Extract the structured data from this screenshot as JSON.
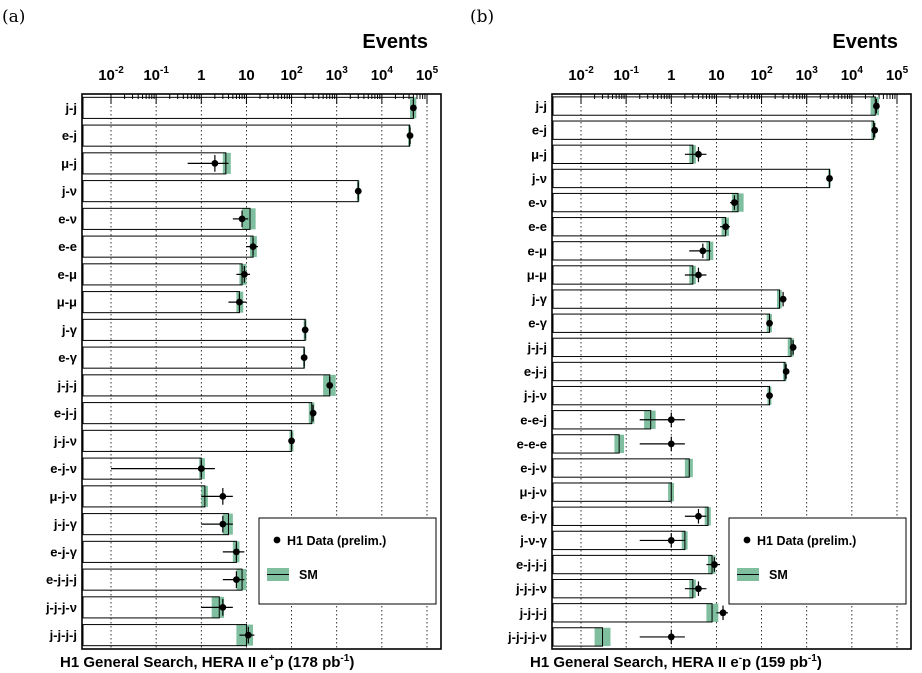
{
  "chart_data": [
    {
      "type": "bar",
      "panel_label": "(a)",
      "title": "Events",
      "x_scale": "log",
      "xlim": [
        0.01,
        100000
      ],
      "x_ticks": [
        {
          "base": "10",
          "exp": "-2"
        },
        {
          "base": "10",
          "exp": "-1"
        },
        {
          "base": "1",
          "exp": ""
        },
        {
          "base": "10",
          "exp": ""
        },
        {
          "base": "10",
          "exp": "2"
        },
        {
          "base": "10",
          "exp": "3"
        },
        {
          "base": "10",
          "exp": "4"
        },
        {
          "base": "10",
          "exp": "5"
        }
      ],
      "grid": "vertical dotted at decades",
      "categories": [
        "j-j",
        "e-j",
        "μ-j",
        "j-ν",
        "e-ν",
        "e-e",
        "e-μ",
        "μ-μ",
        "j-γ",
        "e-γ",
        "j-j-j",
        "e-j-j",
        "j-j-ν",
        "e-j-ν",
        "μ-j-ν",
        "j-j-γ",
        "e-j-γ",
        "e-j-j-j",
        "j-j-j-ν",
        "j-j-j-j"
      ],
      "series": [
        {
          "name": "H1 Data (prelim.)",
          "values": [
            50000,
            42000,
            2,
            3000,
            8,
            14,
            9,
            7,
            200,
            190,
            700,
            300,
            100,
            1,
            3,
            3,
            6,
            6,
            3,
            11
          ],
          "err_low": [
            5000,
            4000,
            1.5,
            200,
            3,
            4,
            3,
            3,
            15,
            15,
            30,
            20,
            10,
            0.99,
            2,
            2,
            3,
            3,
            2,
            4
          ],
          "err_high": [
            5000,
            4000,
            2,
            200,
            3,
            4,
            3,
            3,
            15,
            15,
            30,
            20,
            10,
            1,
            2,
            2,
            3,
            3,
            2,
            4
          ]
        },
        {
          "name": "SM",
          "values": [
            50000,
            41000,
            3.5,
            3000,
            12,
            14,
            8,
            7,
            200,
            190,
            700,
            280,
            100,
            1,
            1.2,
            4,
            6,
            8,
            2.5,
            10
          ],
          "band_low": [
            42000,
            38000,
            3,
            2800,
            8,
            12,
            7,
            6,
            185,
            180,
            500,
            240,
            90,
            0.9,
            1,
            3,
            5,
            6,
            1.7,
            6
          ],
          "band_high": [
            58000,
            44000,
            4.5,
            3200,
            16,
            17,
            10,
            8.5,
            215,
            200,
            950,
            320,
            110,
            1.2,
            1.4,
            5,
            7,
            10,
            3.2,
            14
          ]
        }
      ],
      "xlabel": "H1 General Search, HERA II e",
      "xlabel_sup": "+",
      "xlabel_rest": "p (178 pb",
      "xlabel_sup2": "-1",
      "xlabel_end": ")",
      "legend_position": "lower-right"
    },
    {
      "type": "bar",
      "panel_label": "(b)",
      "title": "Events",
      "x_scale": "log",
      "xlim": [
        0.01,
        100000
      ],
      "x_ticks": [
        {
          "base": "10",
          "exp": "-2"
        },
        {
          "base": "10",
          "exp": "-1"
        },
        {
          "base": "1",
          "exp": ""
        },
        {
          "base": "10",
          "exp": ""
        },
        {
          "base": "10",
          "exp": "2"
        },
        {
          "base": "10",
          "exp": "3"
        },
        {
          "base": "10",
          "exp": "4"
        },
        {
          "base": "10",
          "exp": "5"
        }
      ],
      "grid": "vertical dotted at decades",
      "categories": [
        "j-j",
        "e-j",
        "μ-j",
        "j-ν",
        "e-ν",
        "e-e",
        "e-μ",
        "μ-μ",
        "j-γ",
        "e-γ",
        "j-j-j",
        "e-j-j",
        "j-j-ν",
        "e-e-j",
        "e-e-e",
        "e-j-ν",
        "μ-j-ν",
        "e-j-γ",
        "j-ν-γ",
        "e-j-j-j",
        "j-j-j-ν",
        "j-j-j-j",
        "j-j-j-j-ν"
      ],
      "series": [
        {
          "name": "H1 Data (prelim.)",
          "values": [
            35000,
            32000,
            4,
            3200,
            25,
            16,
            5,
            4,
            300,
            150,
            500,
            350,
            150,
            1,
            1,
            null,
            null,
            4,
            1,
            9,
            4,
            14,
            1
          ],
          "err_low": [
            3500,
            3000,
            2,
            200,
            5,
            4,
            2.5,
            2,
            20,
            12,
            30,
            20,
            12,
            0.8,
            0.8,
            null,
            null,
            2,
            0.8,
            3,
            2,
            4,
            0.8
          ],
          "err_high": [
            3500,
            3000,
            2,
            200,
            5,
            4,
            2.5,
            2,
            20,
            12,
            30,
            20,
            12,
            1,
            1,
            null,
            null,
            2,
            1,
            3,
            2,
            4,
            1
          ]
        },
        {
          "name": "SM",
          "values": [
            33000,
            30000,
            3,
            3200,
            30,
            16,
            7,
            3,
            250,
            150,
            450,
            330,
            150,
            0.35,
            0.07,
            2.5,
            1,
            6.5,
            2,
            8,
            3,
            8,
            0.03
          ],
          "band_low": [
            26000,
            27000,
            2.5,
            3000,
            22,
            13,
            6,
            2.5,
            220,
            130,
            380,
            300,
            135,
            0.25,
            0.055,
            2,
            0.85,
            5.5,
            1.7,
            6.5,
            2.5,
            6,
            0.02
          ],
          "band_high": [
            40000,
            33000,
            3.5,
            3400,
            40,
            19,
            8.5,
            3.5,
            280,
            170,
            520,
            360,
            165,
            0.45,
            0.09,
            3,
            1.15,
            7.5,
            2.3,
            9.5,
            3.5,
            11,
            0.045
          ]
        }
      ],
      "xlabel": "H1 General Search, HERA II e",
      "xlabel_sup": "-",
      "xlabel_rest": "p (159 pb",
      "xlabel_sup2": "-1",
      "xlabel_end": ")",
      "legend_position": "lower-right"
    }
  ],
  "colors": {
    "sm_band": "#7fbf9f",
    "data": "#000000",
    "frame": "#000000"
  }
}
